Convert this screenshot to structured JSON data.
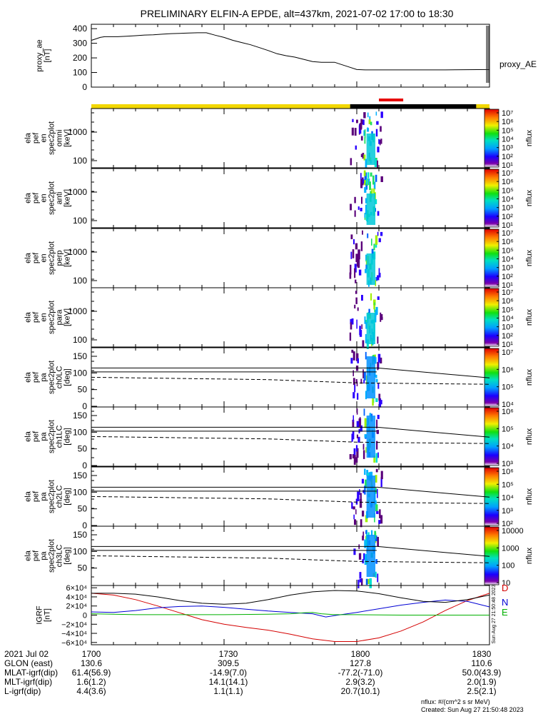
{
  "chart_data": [
    {
      "type": "line",
      "title": "PRELIMINARY ELFIN-A EPDE, alt=437km, 2021-07-02 17:00 to 18:30",
      "ylabel_lines": [
        "proxy_ae",
        "[nT]"
      ],
      "yticks": [
        "0",
        "100",
        "200",
        "300",
        "400"
      ],
      "ylim": [
        0,
        430
      ],
      "series": [
        {
          "name": "proxy_AE",
          "x_minutes": [
            0,
            1,
            2,
            3,
            4,
            6,
            8,
            10,
            12,
            14,
            16,
            18,
            20,
            22,
            24,
            26,
            28,
            30,
            32,
            34,
            36,
            38,
            40,
            42,
            44,
            46,
            48,
            50,
            52,
            54,
            55,
            56,
            58,
            60,
            62,
            64,
            70,
            80,
            90
          ],
          "values": [
            320,
            330,
            340,
            345,
            345,
            345,
            348,
            352,
            356,
            358,
            362,
            366,
            368,
            370,
            372,
            372,
            355,
            340,
            320,
            305,
            290,
            270,
            250,
            228,
            215,
            205,
            190,
            175,
            170,
            170,
            170,
            160,
            140,
            120,
            118,
            118,
            118,
            118,
            120
          ]
        }
      ]
    },
    {
      "type": "bar",
      "name": "status bar",
      "segments": [
        {
          "from": 0,
          "to": 58.5,
          "color": "#f2d700"
        },
        {
          "from": 58.5,
          "to": 87,
          "color": "#000000"
        },
        {
          "from": 87,
          "to": 90,
          "color": "#f2d700"
        }
      ],
      "marks": [
        {
          "from": 65,
          "to": 70.5,
          "color": "#e60000"
        }
      ]
    },
    {
      "type": "heatmap",
      "panels": [
        {
          "ylabel_lines": [
            "ela",
            "pef",
            "en",
            "spec2plot",
            "omni",
            "[keV]"
          ],
          "yticks": [
            "100",
            "1000"
          ],
          "zlabel": "nflux",
          "zticks": [
            "10⁷",
            "10⁶",
            "10⁵",
            "10⁴",
            "10³",
            "10²",
            "10¹"
          ]
        },
        {
          "ylabel_lines": [
            "ela",
            "pef",
            "en",
            "spec2plot",
            "anti",
            "[keV]"
          ],
          "yticks": [
            "100",
            "1000"
          ],
          "zlabel": "nflux",
          "zticks": [
            "10⁷",
            "10⁶",
            "10⁵",
            "10⁴",
            "10³",
            "10²",
            "10¹"
          ]
        },
        {
          "ylabel_lines": [
            "ela",
            "pef",
            "en",
            "spec2plot",
            "perp",
            "[keV]"
          ],
          "yticks": [
            "100",
            "1000"
          ],
          "zlabel": "nflux",
          "zticks": [
            "10⁷",
            "10⁶",
            "10⁵",
            "10⁴",
            "10³",
            "10²",
            "10¹"
          ]
        },
        {
          "ylabel_lines": [
            "ela",
            "pef",
            "en",
            "spec2plot",
            "para",
            "[keV]"
          ],
          "yticks": [
            "100",
            "1000"
          ],
          "zlabel": "nflux",
          "zticks": [
            "10⁷",
            "10⁶",
            "10⁵",
            "10⁴",
            "10³",
            "10²",
            "10¹"
          ]
        },
        {
          "ylabel_lines": [
            "ela",
            "pef",
            "pa",
            "spec2plot",
            "ch0LC",
            "[deg]"
          ],
          "yticks": [
            "0",
            "50",
            "100",
            "150"
          ],
          "zlabel": "nflux",
          "zticks": [
            "10⁷",
            "10⁶",
            "10⁵",
            "10⁴"
          ]
        },
        {
          "ylabel_lines": [
            "ela",
            "pef",
            "pa",
            "spec2plot",
            "ch1LC",
            "[deg]"
          ],
          "yticks": [
            "0",
            "50",
            "100",
            "150"
          ],
          "zlabel": "nflux",
          "zticks": [
            "10⁶",
            "10⁵",
            "10⁴",
            "10³"
          ]
        },
        {
          "ylabel_lines": [
            "ela",
            "pef",
            "pa",
            "spec2plot",
            "ch2LC",
            "[deg]"
          ],
          "yticks": [
            "0",
            "50",
            "100",
            "150"
          ],
          "zlabel": "nflux",
          "zticks": [
            "10⁶",
            "10⁵",
            "10⁴",
            "10³",
            "10²"
          ]
        },
        {
          "ylabel_lines": [
            "ela",
            "pef",
            "pa",
            "spec2plot",
            "ch3LC",
            "[deg]"
          ],
          "yticks": [
            "50",
            "100",
            "150"
          ],
          "zlabel": "nflux",
          "zticks": [
            "10000",
            "1000",
            "100",
            "10"
          ]
        }
      ]
    },
    {
      "type": "line",
      "ylabel_lines": [
        "IGRF",
        "[nT]"
      ],
      "yticks": [
        "6×10⁴",
        "4×10⁴",
        "2×10⁴",
        "0",
        "−2×10⁴",
        "−4×10⁴",
        "−6×10⁴"
      ],
      "ylim": [
        -65000,
        65000
      ],
      "series": [
        {
          "name": "D",
          "color": "#d40000",
          "x_minutes": [
            0,
            5,
            10,
            15,
            20,
            25,
            30,
            35,
            40,
            45,
            50,
            55,
            60,
            65,
            70,
            75,
            80,
            85,
            90
          ],
          "values": [
            48000,
            44000,
            34000,
            20000,
            5000,
            -10000,
            -20000,
            -27000,
            -33000,
            -42000,
            -52000,
            -58000,
            -58000,
            -50000,
            -35000,
            -15000,
            10000,
            32000,
            48000
          ]
        },
        {
          "name": "N",
          "color": "#0000d4",
          "x_minutes": [
            0,
            5,
            10,
            15,
            20,
            25,
            30,
            35,
            40,
            45,
            50,
            53,
            55,
            60,
            65,
            70,
            75,
            80,
            85,
            90
          ],
          "values": [
            7000,
            6000,
            10000,
            16000,
            19000,
            20000,
            17000,
            13000,
            9000,
            6000,
            3000,
            -4000,
            -1000,
            6000,
            14000,
            22000,
            28000,
            33000,
            30000,
            18000
          ]
        },
        {
          "name": "E",
          "color": "#00b000",
          "x_minutes": [
            0,
            10,
            20,
            30,
            40,
            45,
            48,
            50,
            52,
            55,
            60,
            70,
            80,
            90
          ],
          "values": [
            3000,
            1000,
            1000,
            1000,
            2000,
            3000,
            5000,
            6000,
            3000,
            1000,
            1000,
            0,
            0,
            0
          ]
        },
        {
          "name": "",
          "color": "#000000",
          "x_minutes": [
            0,
            5,
            10,
            15,
            20,
            25,
            30,
            35,
            40,
            45,
            50,
            55,
            60,
            65,
            70,
            75,
            80,
            85,
            90
          ],
          "values": [
            48000,
            48000,
            46000,
            40000,
            32000,
            26000,
            24000,
            26000,
            34000,
            44000,
            51000,
            54000,
            53000,
            47000,
            38000,
            30000,
            28000,
            34000,
            44000
          ]
        }
      ]
    }
  ],
  "footer": {
    "rows": [
      {
        "label": "2021 Jul 02",
        "values": [
          "1700",
          "1730",
          "1800",
          "1830"
        ]
      },
      {
        "label": "GLON (east)",
        "values": [
          "130.6",
          "309.5",
          "127.8",
          "110.6"
        ]
      },
      {
        "label": "MLAT-igrf(dip)",
        "values": [
          "61.4(56.9)",
          "-14.9(7.0)",
          "-77.2(-71.0)",
          "50.0(43.9)"
        ]
      },
      {
        "label": "MLT-igrf(dip)",
        "values": [
          "1.6(1.2)",
          "14.1(14.1)",
          "2.9(3.2)",
          "2.0(1.9)"
        ]
      },
      {
        "label": "L-igrf(dip)",
        "values": [
          "4.4(3.6)",
          "1.1(1.1)",
          "20.7(10.1)",
          "2.5(2.1)"
        ]
      }
    ],
    "units_note": "nflux: #/(cm^2 s sr MeV)",
    "created": "Created: Sun Aug 27 21:50:48 2023",
    "side_stamp": "Sun Aug 27 21:50:48 2023"
  }
}
